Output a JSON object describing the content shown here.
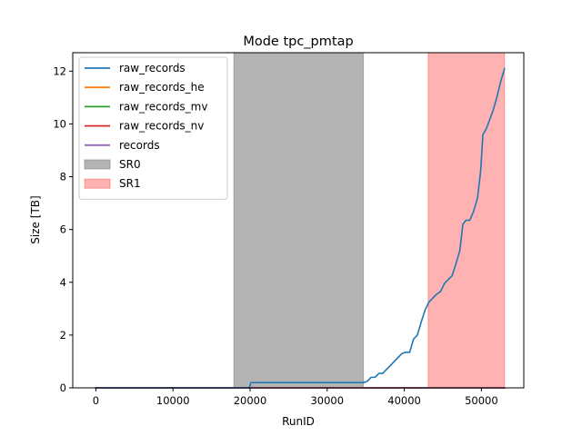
{
  "chart_data": {
    "type": "line",
    "title": "Mode tpc_pmtap",
    "xlabel": "RunID",
    "ylabel": "Size [TB]",
    "xlim": [
      -3000,
      55500
    ],
    "ylim": [
      0,
      12.7
    ],
    "xticks": [
      0,
      10000,
      20000,
      30000,
      40000,
      50000
    ],
    "yticks": [
      0,
      2,
      4,
      6,
      8,
      10,
      12
    ],
    "grid": false,
    "legend_position": "upper-left",
    "bands": [
      {
        "name": "SR0",
        "x0": 17900,
        "x1": 34700,
        "color": "#808080",
        "alpha": 0.6
      },
      {
        "name": "SR1",
        "x0": 43100,
        "x1": 53000,
        "color": "#ff0000",
        "alpha": 0.3
      }
    ],
    "series": [
      {
        "name": "raw_records",
        "color": "#1f77b4",
        "x": [
          0,
          19900,
          20100,
          34700,
          35200,
          35700,
          36200,
          36700,
          37200,
          37700,
          38700,
          39700,
          40200,
          40700,
          41200,
          41700,
          42200,
          42700,
          43200,
          43700,
          44200,
          44700,
          45200,
          45700,
          46200,
          46700,
          47200,
          47600,
          48000,
          48500,
          49000,
          49500,
          49900,
          50200,
          50600,
          51000,
          51500,
          52000,
          52500,
          53000
        ],
        "y": [
          0,
          0,
          0.2,
          0.2,
          0.25,
          0.4,
          0.4,
          0.55,
          0.55,
          0.7,
          1.0,
          1.3,
          1.35,
          1.35,
          1.85,
          2.0,
          2.5,
          2.95,
          3.25,
          3.4,
          3.55,
          3.65,
          3.95,
          4.1,
          4.25,
          4.7,
          5.2,
          6.2,
          6.35,
          6.35,
          6.7,
          7.2,
          8.2,
          9.6,
          9.8,
          10.1,
          10.5,
          11.0,
          11.6,
          12.1
        ]
      },
      {
        "name": "raw_records_he",
        "color": "#ff7f0e",
        "x": [
          0,
          53000
        ],
        "y": [
          0,
          0
        ]
      },
      {
        "name": "raw_records_mv",
        "color": "#2ca02c",
        "x": [
          0,
          53000
        ],
        "y": [
          0,
          0
        ]
      },
      {
        "name": "raw_records_nv",
        "color": "#d62728",
        "x": [
          0,
          53000
        ],
        "y": [
          0,
          0
        ]
      },
      {
        "name": "records",
        "color": "#9467bd",
        "x": [
          0,
          53000
        ],
        "y": [
          0,
          0
        ]
      }
    ]
  }
}
